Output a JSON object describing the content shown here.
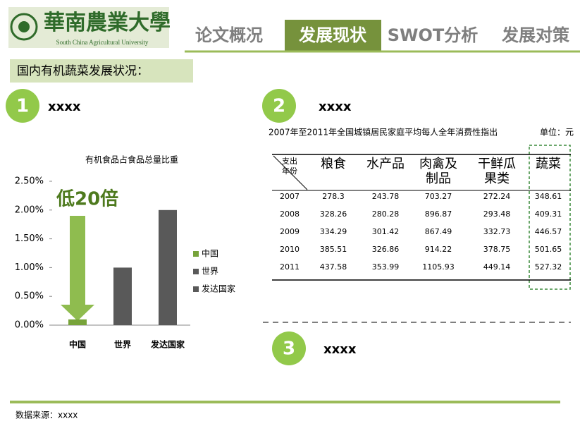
{
  "header": {
    "logo_title": "華南農業大學",
    "logo_subtitle": "South China Agricultural University",
    "tabs": [
      "论文概况",
      "发展现状",
      "SWOT分析",
      "发展对策"
    ],
    "active_tab": 1
  },
  "section_title": "国内有机蔬菜发展状况：",
  "sections": [
    {
      "number": 1,
      "label": "xxxx"
    },
    {
      "number": 2,
      "label": "xxxx"
    },
    {
      "number": 3,
      "label": "xxxx"
    }
  ],
  "chart_data": {
    "type": "bar",
    "title": "有机食品占食品总量比重",
    "categories": [
      "中国",
      "世界",
      "发达国家"
    ],
    "series": [
      {
        "name": "中国",
        "color": "#77a33a",
        "values": [
          0.1,
          null,
          null
        ]
      },
      {
        "name": "世界",
        "color": "#595959",
        "values": [
          null,
          1.0,
          null
        ]
      },
      {
        "name": "发达国家",
        "color": "#595959",
        "values": [
          null,
          null,
          2.0
        ]
      }
    ],
    "ylim": [
      0,
      2.5
    ],
    "yticks": [
      {
        "value": 0,
        "label": "0.00%"
      },
      {
        "value": 0.5,
        "label": "0.50%"
      },
      {
        "value": 1,
        "label": "1.00%"
      },
      {
        "value": 1.5,
        "label": "1.50%"
      },
      {
        "value": 2,
        "label": "2.00%"
      },
      {
        "value": 2.5,
        "label": "2.50%"
      }
    ],
    "annotation": "低20倍",
    "legend": "right"
  },
  "table": {
    "title": "2007年至2011年全国城镇居民家庭平均每人全年消费性指出",
    "unit": "单位：元",
    "corner": [
      "支出",
      "年份"
    ],
    "columns": [
      "粮食",
      "水产品",
      "肉禽及制品",
      "干鲜瓜果类",
      "蔬菜"
    ],
    "rows": [
      [
        2007,
        278.3,
        243.78,
        703.27,
        272.24,
        348.61
      ],
      [
        2008,
        328.26,
        280.28,
        896.87,
        293.48,
        409.31
      ],
      [
        2009,
        334.29,
        301.42,
        867.49,
        332.73,
        446.57
      ],
      [
        2010,
        385.51,
        326.86,
        914.22,
        378.75,
        501.65
      ],
      [
        2011,
        437.58,
        353.99,
        1105.93,
        449.14,
        527.32
      ]
    ]
  },
  "source": "数据来源：xxxx"
}
